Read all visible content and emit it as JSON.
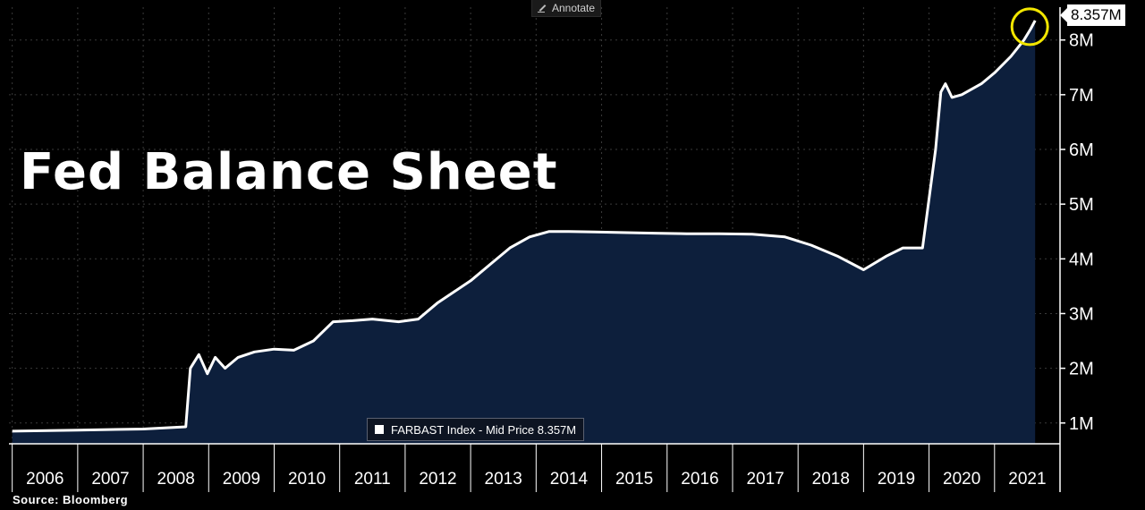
{
  "toolbar": {
    "annotate_label": "Annotate",
    "annotate_icon": "pencil-icon"
  },
  "title_text": "Fed Balance Sheet",
  "source_text": "Source:  Bloomberg",
  "legend": {
    "label": "FARBAST Index - Mid Price 8.357M"
  },
  "last_price_label": "8.357M",
  "colors": {
    "background": "#000000",
    "line": "#ffffff",
    "area_fill": "#0d1f3c",
    "grid": "#3a3a3a",
    "highlight_circle": "#f2e600"
  },
  "chart_data": {
    "type": "area",
    "series": [
      {
        "name": "FARBAST Index - Mid Price",
        "x": [
          2006.0,
          2007.0,
          2008.0,
          2008.65,
          2008.72,
          2008.85,
          2008.98,
          2009.1,
          2009.25,
          2009.45,
          2009.7,
          2010.0,
          2010.3,
          2010.6,
          2010.9,
          2011.2,
          2011.5,
          2011.9,
          2012.2,
          2012.5,
          2012.75,
          2013.0,
          2013.3,
          2013.6,
          2013.9,
          2014.2,
          2014.5,
          2014.9,
          2015.3,
          2015.8,
          2016.3,
          2016.8,
          2017.3,
          2017.8,
          2018.2,
          2018.6,
          2019.0,
          2019.35,
          2019.6,
          2019.9,
          2020.1,
          2020.18,
          2020.25,
          2020.35,
          2020.5,
          2020.8,
          2021.0,
          2021.25,
          2021.45,
          2021.55,
          2021.62
        ],
        "values": [
          0.85,
          0.87,
          0.89,
          0.93,
          2.0,
          2.25,
          1.9,
          2.2,
          2.0,
          2.2,
          2.3,
          2.35,
          2.33,
          2.5,
          2.85,
          2.87,
          2.9,
          2.85,
          2.9,
          3.2,
          3.4,
          3.6,
          3.9,
          4.2,
          4.4,
          4.5,
          4.5,
          4.49,
          4.48,
          4.47,
          4.46,
          4.46,
          4.45,
          4.4,
          4.25,
          4.05,
          3.8,
          4.05,
          4.2,
          4.2,
          6.0,
          7.05,
          7.2,
          6.95,
          7.0,
          7.2,
          7.4,
          7.7,
          8.0,
          8.2,
          8.357
        ]
      }
    ],
    "x_tick_labels": [
      "2006",
      "2007",
      "2008",
      "2009",
      "2010",
      "2011",
      "2012",
      "2013",
      "2014",
      "2015",
      "2016",
      "2017",
      "2018",
      "2019",
      "2020",
      "2021"
    ],
    "y_ticks": [
      1,
      2,
      3,
      4,
      5,
      6,
      7,
      8
    ],
    "y_tick_labels": [
      "1M",
      "2M",
      "3M",
      "4M",
      "5M",
      "6M",
      "7M",
      "8M"
    ],
    "xlim": [
      2005.95,
      2022.0
    ],
    "ylim": [
      0.62,
      8.6
    ],
    "y_axis_side": "right",
    "grid": true,
    "last_value_label": "8.357M",
    "highlight": "circle around last value"
  }
}
